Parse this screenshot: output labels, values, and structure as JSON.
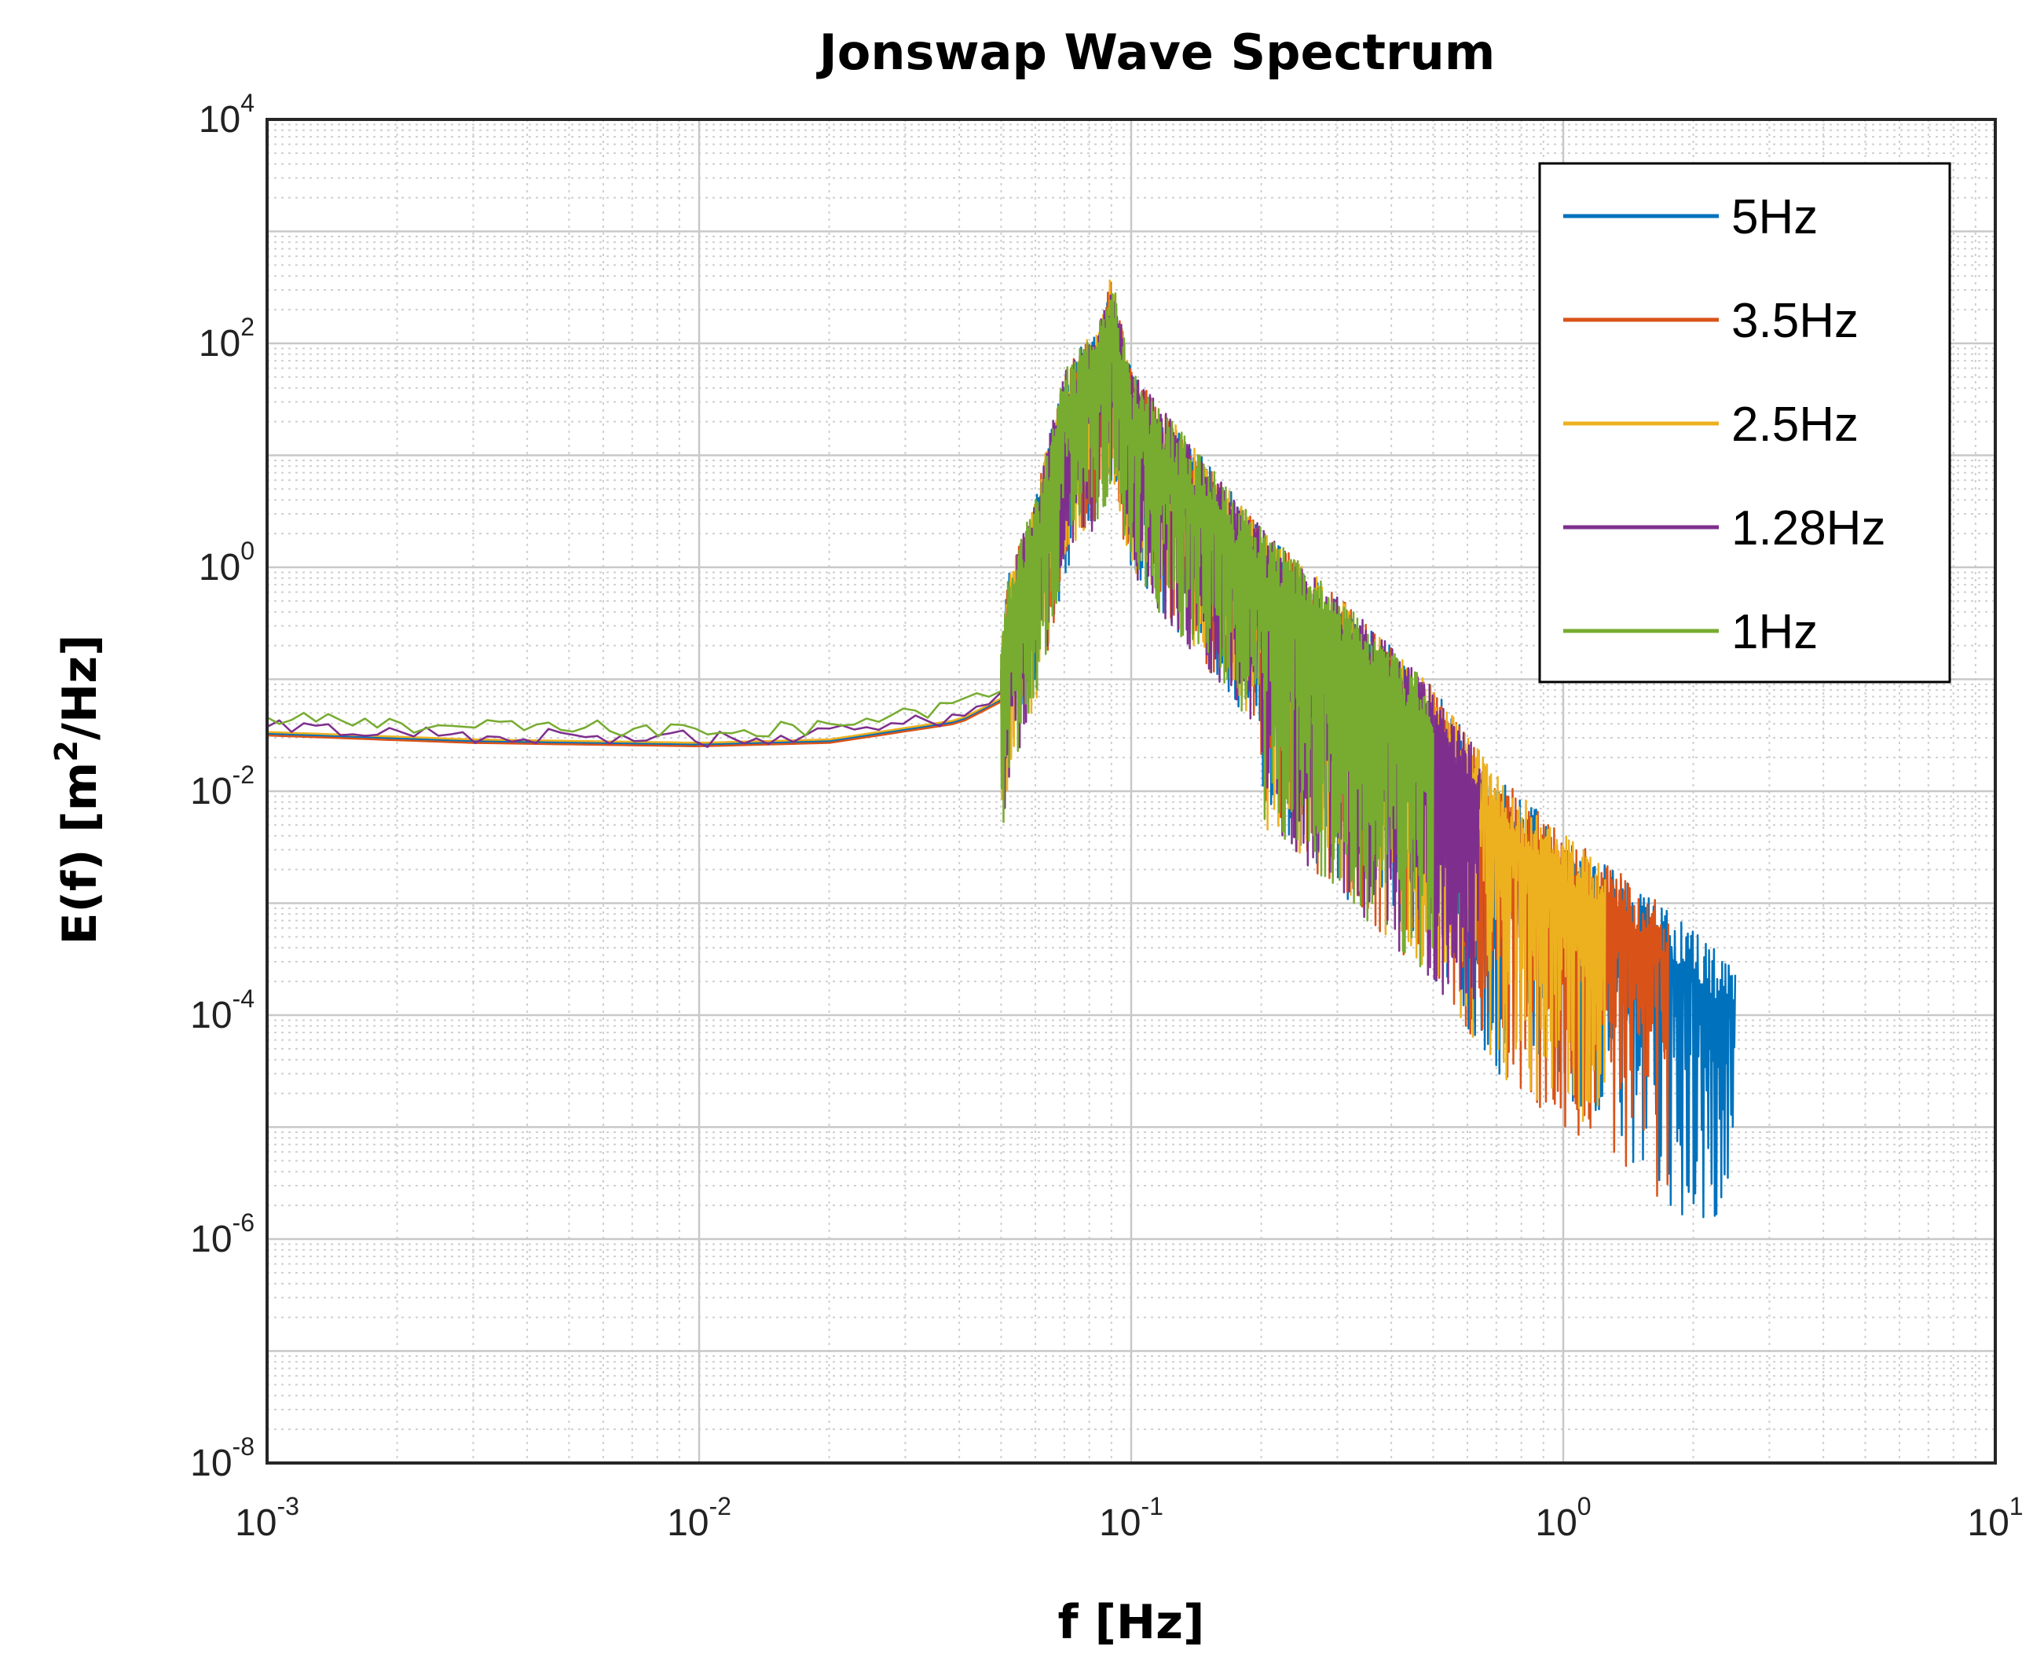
{
  "chart_data": {
    "type": "line",
    "title": "Jonswap Wave Spectrum",
    "xlabel": "f [Hz]",
    "ylabel": {
      "prefix": "E(f) [m",
      "sup": "2",
      "suffix": "/Hz]"
    },
    "xscale": "log",
    "yscale": "log",
    "xlim": [
      0.001,
      10
    ],
    "ylim": [
      1e-08,
      10000
    ],
    "x_ticks": [
      {
        "value": 0.001,
        "base": "10",
        "exp": "-3"
      },
      {
        "value": 0.01,
        "base": "10",
        "exp": "-2"
      },
      {
        "value": 0.1,
        "base": "10",
        "exp": "-1"
      },
      {
        "value": 1,
        "base": "10",
        "exp": "0"
      },
      {
        "value": 10,
        "base": "10",
        "exp": "1"
      }
    ],
    "y_ticks": [
      {
        "value": 1e-08,
        "base": "10",
        "exp": "-8"
      },
      {
        "value": 1e-06,
        "base": "10",
        "exp": "-6"
      },
      {
        "value": 0.0001,
        "base": "10",
        "exp": "-4"
      },
      {
        "value": 0.01,
        "base": "10",
        "exp": "-2"
      },
      {
        "value": 1,
        "base": "10",
        "exp": "0"
      },
      {
        "value": 100,
        "base": "10",
        "exp": "2"
      },
      {
        "value": 10000,
        "base": "10",
        "exp": "4"
      }
    ],
    "grid": true,
    "minor_grid": true,
    "legend_position": "top-right",
    "series": [
      {
        "name": "5Hz",
        "color": "#0072BD",
        "fmax": 2.5,
        "low_level": 0.028
      },
      {
        "name": "3.5Hz",
        "color": "#D95319",
        "fmax": 1.75,
        "low_level": 0.027
      },
      {
        "name": "2.5Hz",
        "color": "#EDB120",
        "fmax": 1.25,
        "low_level": 0.029
      },
      {
        "name": "1.28Hz",
        "color": "#7E2F8E",
        "fmax": 0.64,
        "low_level": 0.032
      },
      {
        "name": "1Hz",
        "color": "#77AC30",
        "fmax": 0.5,
        "low_level": 0.038
      }
    ],
    "envelope": {
      "description": "approximate spectral envelope shared by all series",
      "points": [
        {
          "f": 0.001,
          "E": 0.035
        },
        {
          "f": 0.003,
          "E": 0.03
        },
        {
          "f": 0.01,
          "E": 0.028
        },
        {
          "f": 0.02,
          "E": 0.03
        },
        {
          "f": 0.04,
          "E": 0.045
        },
        {
          "f": 0.05,
          "E": 0.07
        },
        {
          "f": 0.052,
          "E": 0.3
        },
        {
          "f": 0.06,
          "E": 1.5
        },
        {
          "f": 0.07,
          "E": 20
        },
        {
          "f": 0.085,
          "E": 60
        },
        {
          "f": 0.09,
          "E": 150
        },
        {
          "f": 0.1,
          "E": 20
        },
        {
          "f": 0.15,
          "E": 3
        },
        {
          "f": 0.2,
          "E": 0.8
        },
        {
          "f": 0.3,
          "E": 0.2
        },
        {
          "f": 0.5,
          "E": 0.03
        },
        {
          "f": 0.7,
          "E": 0.005
        },
        {
          "f": 1.0,
          "E": 0.0015
        },
        {
          "f": 1.5,
          "E": 0.0005
        },
        {
          "f": 2.5,
          "E": 0.0001
        }
      ]
    }
  }
}
